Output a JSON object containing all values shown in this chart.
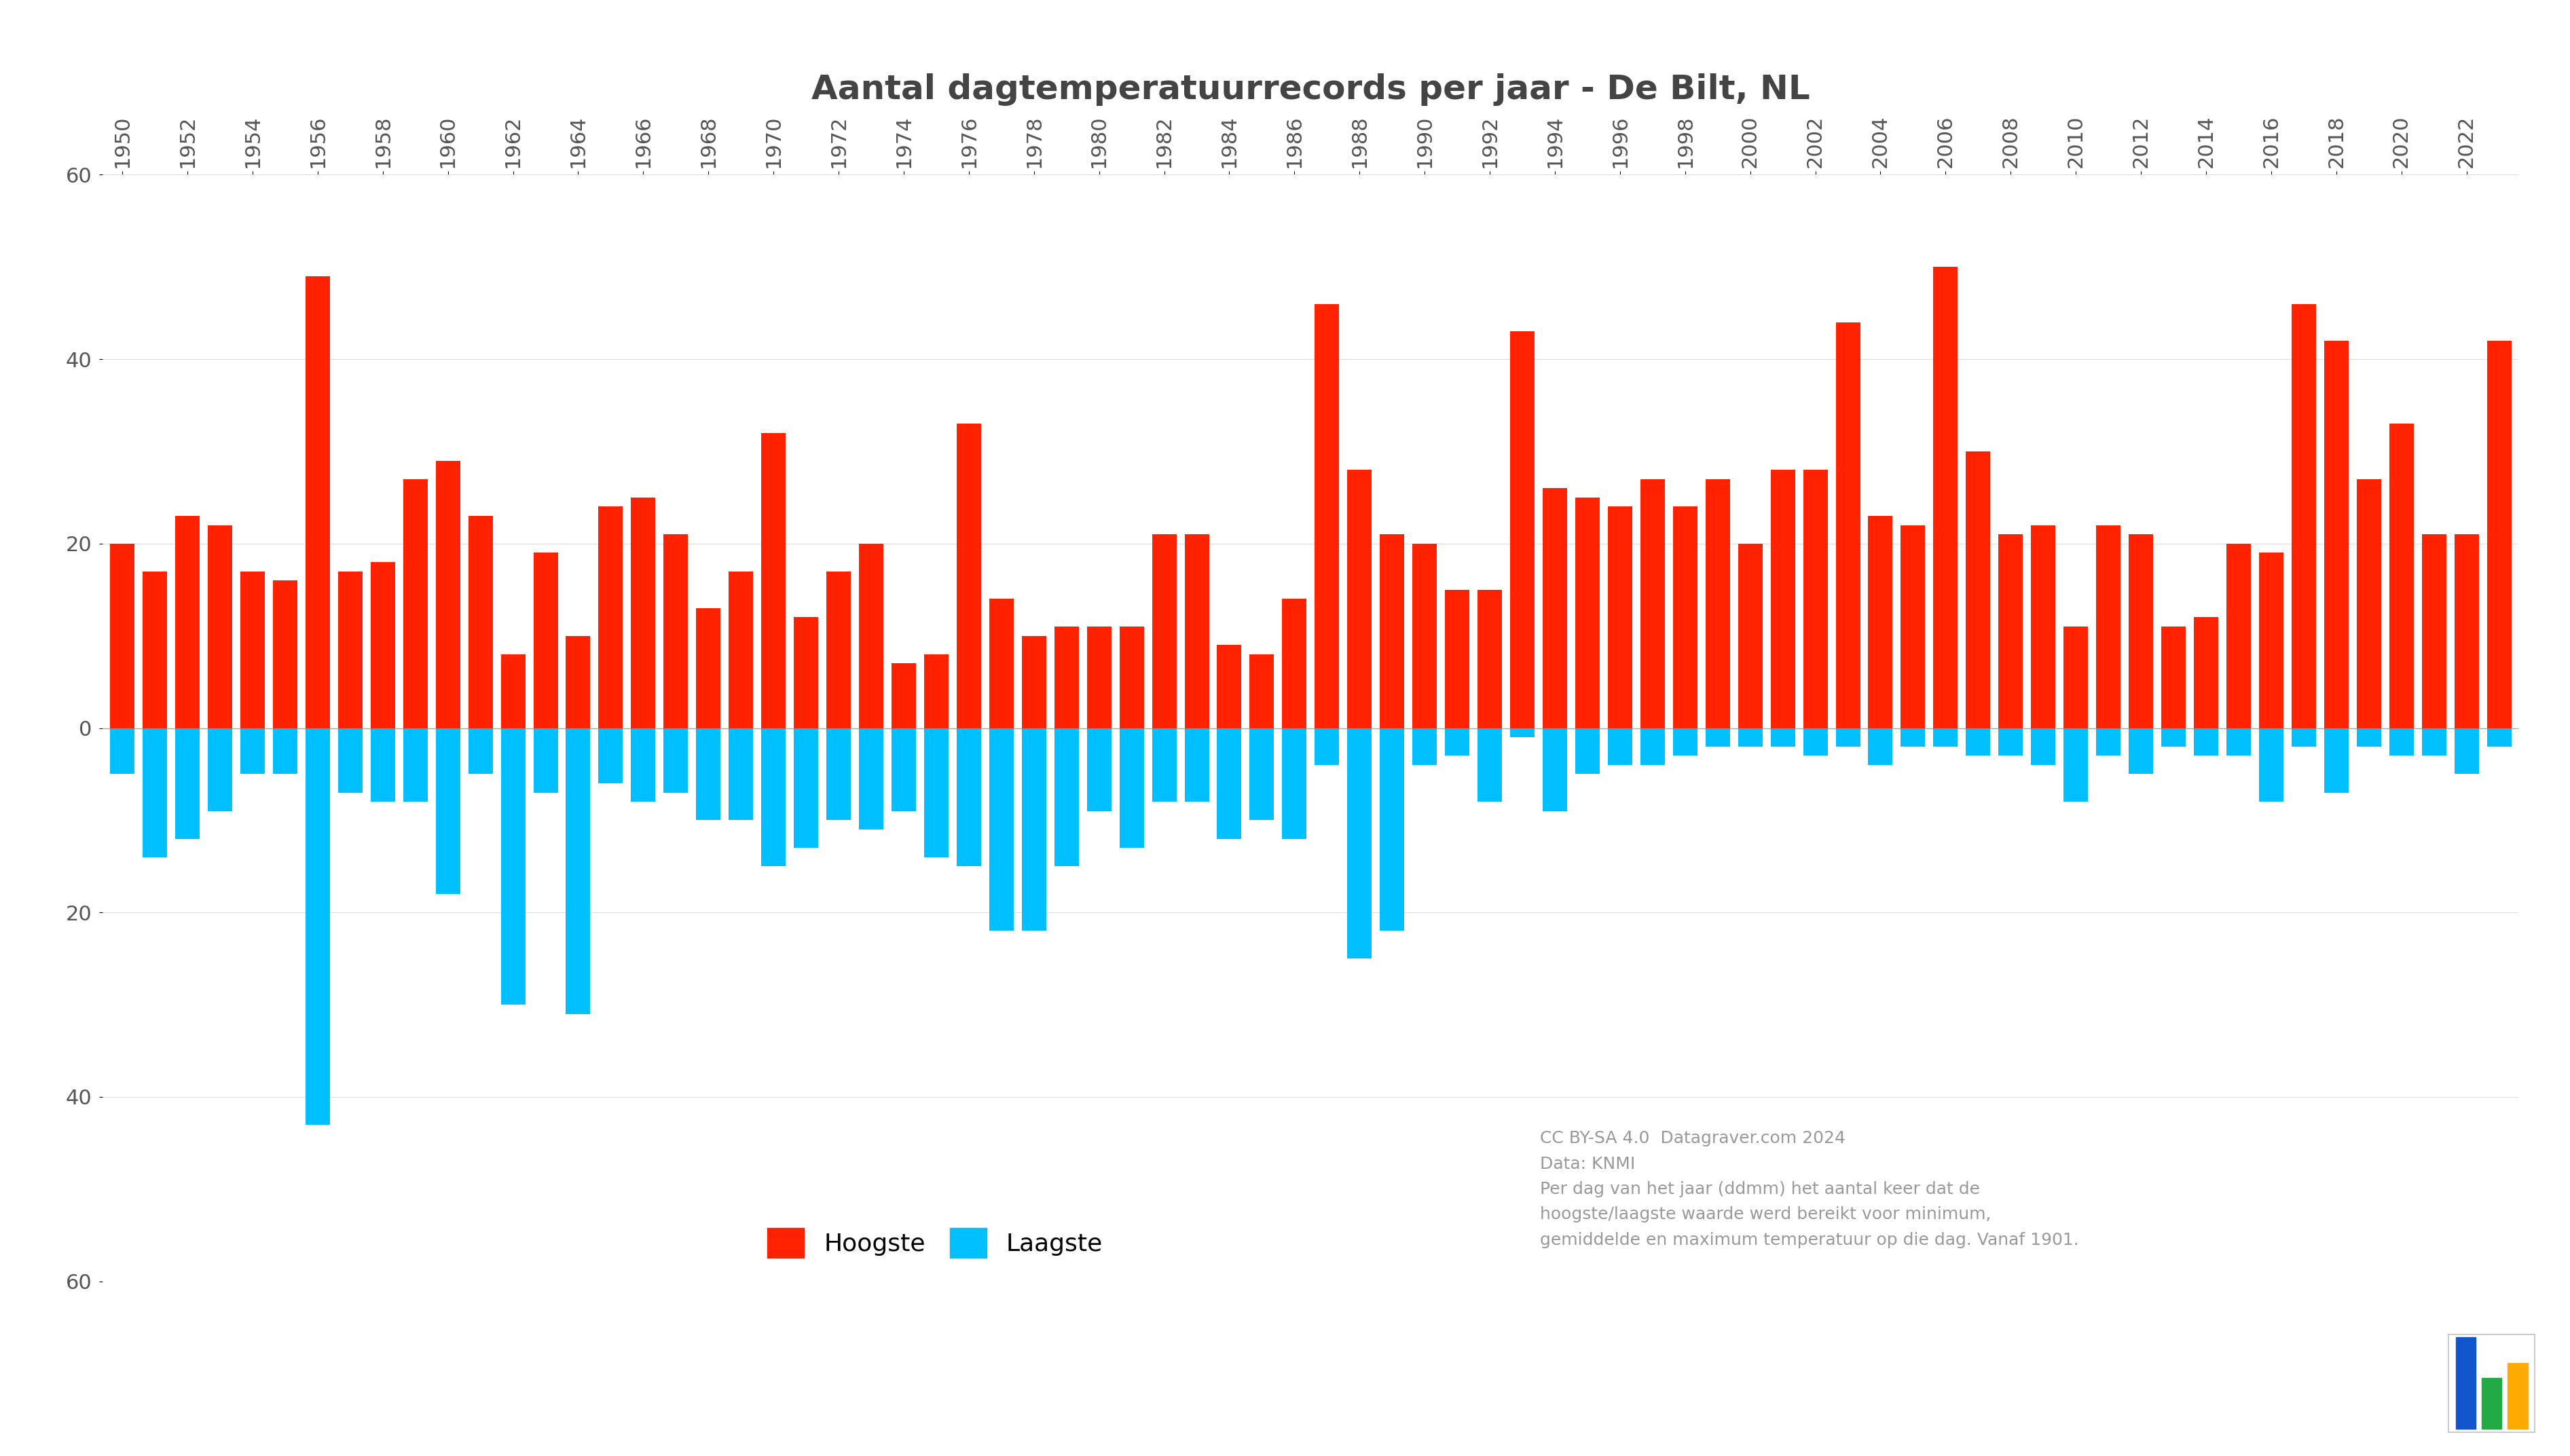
{
  "title": "Aantal dagtemperatuurrecords per jaar - De Bilt, NL",
  "title_fontsize": 36,
  "bar_color_high": "#FF2200",
  "bar_color_low": "#00BFFF",
  "background_color": "#FFFFFF",
  "tick_fontsize": 22,
  "legend_fontsize": 26,
  "annotation_fontsize": 18,
  "years": [
    1950,
    1951,
    1952,
    1953,
    1954,
    1955,
    1956,
    1957,
    1958,
    1959,
    1960,
    1961,
    1962,
    1963,
    1964,
    1965,
    1966,
    1967,
    1968,
    1969,
    1970,
    1971,
    1972,
    1973,
    1974,
    1975,
    1976,
    1977,
    1978,
    1979,
    1980,
    1981,
    1982,
    1983,
    1984,
    1985,
    1986,
    1987,
    1988,
    1989,
    1990,
    1991,
    1992,
    1993,
    1994,
    1995,
    1996,
    1997,
    1998,
    1999,
    2000,
    2001,
    2002,
    2003,
    2004,
    2005,
    2006,
    2007,
    2008,
    2009,
    2010,
    2011,
    2012,
    2013,
    2014,
    2015,
    2016,
    2017,
    2018,
    2019,
    2020,
    2021,
    2022,
    2023
  ],
  "highest": [
    20,
    17,
    23,
    22,
    17,
    16,
    49,
    17,
    18,
    27,
    29,
    23,
    8,
    19,
    10,
    24,
    25,
    21,
    13,
    17,
    32,
    12,
    17,
    20,
    7,
    8,
    33,
    14,
    10,
    11,
    11,
    11,
    21,
    21,
    9,
    8,
    14,
    46,
    28,
    21,
    20,
    15,
    15,
    43,
    26,
    25,
    24,
    27,
    24,
    27,
    20,
    28,
    28,
    44,
    23,
    22,
    50,
    30,
    21,
    22,
    11,
    22,
    21,
    11,
    12,
    20,
    19,
    46,
    42,
    27,
    33,
    21,
    21,
    42
  ],
  "lowest": [
    -5,
    -14,
    -12,
    -9,
    -5,
    -5,
    -43,
    -7,
    -8,
    -8,
    -18,
    -5,
    -30,
    -7,
    -31,
    -6,
    -8,
    -7,
    -10,
    -10,
    -15,
    -13,
    -10,
    -11,
    -9,
    -14,
    -15,
    -22,
    -22,
    -15,
    -9,
    -13,
    -8,
    -8,
    -12,
    -10,
    -12,
    -4,
    -25,
    -22,
    -4,
    -3,
    -8,
    -1,
    -9,
    -5,
    -4,
    -4,
    -3,
    -2,
    -2,
    -2,
    -3,
    -2,
    -4,
    -2,
    -2,
    -3,
    -3,
    -4,
    -8,
    -3,
    -5,
    -2,
    -3,
    -3,
    -8,
    -2,
    -7,
    -2,
    -3,
    -3,
    -5,
    -2
  ],
  "ylim": [
    -60,
    60
  ],
  "yticks": [
    -60,
    -40,
    -20,
    0,
    20,
    40,
    60
  ],
  "annotation_text": "CC BY-SA 4.0  Datagraver.com 2024\nData: KNMI\nPer dag van het jaar (ddmm) het aantal keer dat de\nhoogste/laagste waarde werd bereikt voor minimum,\ngemiddelde en maximum temperatuur op die dag. Vanaf 1901.",
  "legend_label_high": "Hoogste",
  "legend_label_low": "Laagste",
  "xtick_every": 2
}
